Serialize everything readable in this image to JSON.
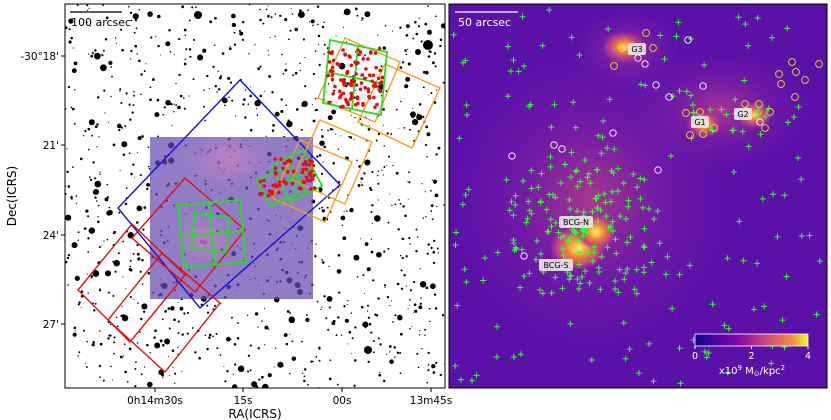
{
  "left_panel": {
    "scale_bar_label": "100 arcsec",
    "dec_ticks": [
      "-30°18'",
      "21'",
      "24'",
      "27'"
    ],
    "ra_ticks": [
      "0h14m30s",
      "15s",
      "00s",
      "13m45s"
    ],
    "ylabel": "Dec(ICRS)",
    "xlabel": "RA(ICRS)",
    "colors": {
      "blue_box": "#1010e0",
      "red_box": "#e01010",
      "orange_box": "#f0a020",
      "green_box": "#20e020",
      "red_points": "#e01010",
      "overlay": "#6a4ab0"
    }
  },
  "right_panel": {
    "scale_bar_label": "50 arcsec",
    "galaxy_labels": [
      "G3",
      "G1",
      "G2",
      "BCG-N",
      "BCG-S"
    ],
    "colorbar": {
      "ticks": [
        "0",
        "2",
        "4"
      ],
      "unit_prefix": "x10",
      "unit_exp": "9",
      "unit_mid": " M",
      "unit_sub": "⊙",
      "unit_suffix": "/kpc",
      "unit_exp2": "2",
      "colormap": "plasma",
      "range": [
        0,
        4
      ]
    },
    "colors": {
      "cross": "#30ff30",
      "circle_white": "#ffffff",
      "circle_yellow": "#e6e020"
    }
  }
}
